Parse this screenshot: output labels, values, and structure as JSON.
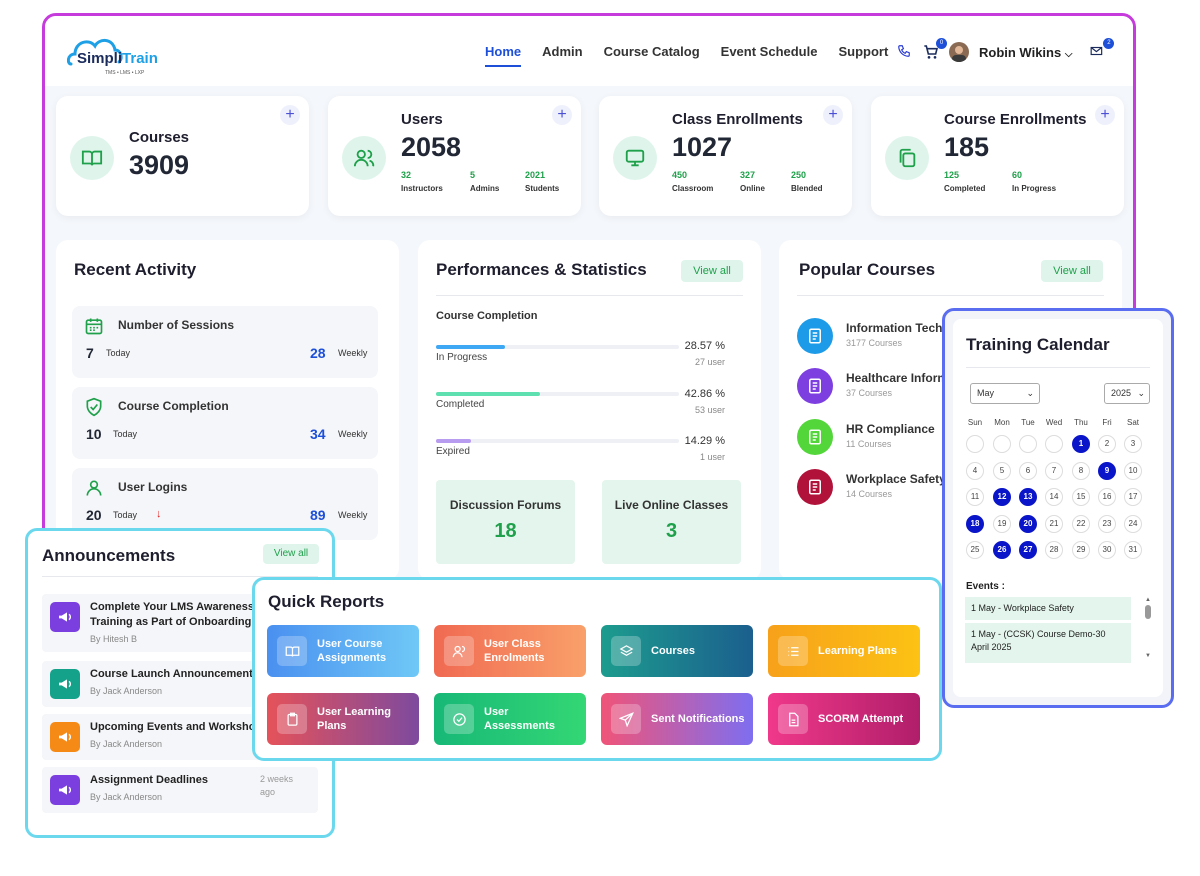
{
  "app": {
    "brand_a": "Simpli",
    "brand_b": "Train",
    "tagline": "TMS • LMS • LXP"
  },
  "nav": {
    "items": [
      "Home",
      "Admin",
      "Course Catalog",
      "Event Schedule",
      "Support"
    ],
    "active": "Home"
  },
  "header": {
    "user_name": "Robin Wikins",
    "cart_badge": "0",
    "mail_badge": "2"
  },
  "stats": [
    {
      "title": "Courses",
      "value": "3909",
      "icon": "book-open-icon",
      "subs": []
    },
    {
      "title": "Users",
      "value": "2058",
      "icon": "users-icon",
      "subs": [
        {
          "n": "32",
          "l": "Instructors"
        },
        {
          "n": "5",
          "l": "Admins"
        },
        {
          "n": "2021",
          "l": "Students"
        }
      ]
    },
    {
      "title": "Class Enrollments",
      "value": "1027",
      "icon": "monitor-icon",
      "subs": [
        {
          "n": "450",
          "l": "Classroom"
        },
        {
          "n": "327",
          "l": "Online"
        },
        {
          "n": "250",
          "l": "Blended"
        }
      ]
    },
    {
      "title": "Course Enrollments",
      "value": "185",
      "icon": "copy-icon",
      "subs": [
        {
          "n": "125",
          "l": "Completed"
        },
        {
          "n": "60",
          "l": "In Progress"
        }
      ]
    }
  ],
  "recent_activity": {
    "title": "Recent Activity",
    "items": [
      {
        "title": "Number of Sessions",
        "today": "7",
        "today_label": "Today",
        "weekly": "28",
        "weekly_label": "Weekly",
        "icon": "calendar-icon"
      },
      {
        "title": "Course Completion",
        "today": "10",
        "today_label": "Today",
        "weekly": "34",
        "weekly_label": "Weekly",
        "icon": "shield-check-icon"
      },
      {
        "title": "User Logins",
        "today": "20",
        "today_label": "Today",
        "weekly": "89",
        "weekly_label": "Weekly",
        "icon": "user-icon"
      }
    ]
  },
  "performance": {
    "title": "Performances & Statistics",
    "view_all": "View all",
    "subtitle": "Course Completion",
    "bars": [
      {
        "label": "In Progress",
        "pct": "28.57 %",
        "users": "27 user",
        "value": 28.57,
        "color": "#3fa8f4"
      },
      {
        "label": "Completed",
        "pct": "42.86 %",
        "users": "53 user",
        "value": 42.86,
        "color": "#5fe0b0"
      },
      {
        "label": "Expired",
        "pct": "14.29 %",
        "users": "1 user",
        "value": 14.29,
        "color": "#b79cf0"
      }
    ],
    "tiles": [
      {
        "title": "Discussion Forums",
        "value": "18"
      },
      {
        "title": "Live Online Classes",
        "value": "3"
      }
    ]
  },
  "popular": {
    "title": "Popular Courses",
    "view_all": "View all",
    "items": [
      {
        "name": "Information Techn",
        "count": "3177 Courses",
        "color": "#1e9be8"
      },
      {
        "name": "Healthcare Inform",
        "count": "37 Courses",
        "color": "#7d3fe0"
      },
      {
        "name": "HR Compliance",
        "count": "11 Courses",
        "color": "#52d63a"
      },
      {
        "name": "Workplace Safety",
        "count": "14 Courses",
        "color": "#b0123a"
      }
    ]
  },
  "calendar": {
    "title": "Training Calendar",
    "month": "May",
    "year": "2025",
    "days": [
      "Sun",
      "Mon",
      "Tue",
      "Wed",
      "Thu",
      "Fri",
      "Sat"
    ],
    "highlighted": [
      1,
      9,
      12,
      13,
      18,
      20,
      26,
      27
    ],
    "events_label": "Events :",
    "events": [
      "1 May - Workplace Safety",
      "1 May - (CCSK) Course Demo-30 April 2025"
    ]
  },
  "announcements": {
    "title": "Announcements",
    "view_all": "View all",
    "items": [
      {
        "title": "Complete Your LMS Awareness Training as Part of Onboarding",
        "by": "By Hitesh B",
        "time": "",
        "color": "#7b3fe0"
      },
      {
        "title": "Course Launch Announcements",
        "by": "By Jack Anderson",
        "time": "",
        "color": "#14a28a"
      },
      {
        "title": "Upcoming Events and Workshops",
        "by": "By Jack Anderson",
        "time": "",
        "color": "#f58a16"
      },
      {
        "title": "Assignment Deadlines",
        "by": "By Jack Anderson",
        "time": "2 weeks ago",
        "color": "#7b3fe0"
      }
    ]
  },
  "quick_reports": {
    "title": "Quick Reports",
    "items": [
      {
        "label": "User Course Assignments",
        "icon": "book-icon",
        "from": "#4a90f0",
        "to": "#6fc8f6"
      },
      {
        "label": "User Class Enrolments",
        "icon": "users-icon",
        "from": "#f06a52",
        "to": "#f9a06a"
      },
      {
        "label": "Courses",
        "icon": "layers-icon",
        "from": "#1d9c8e",
        "to": "#1b5f8e"
      },
      {
        "label": "Learning Plans",
        "icon": "list-icon",
        "from": "#f7a11a",
        "to": "#fcc214"
      },
      {
        "label": "User Learning Plans",
        "icon": "clipboard-icon",
        "from": "#e5525a",
        "to": "#7e4a9e"
      },
      {
        "label": "User Assessments",
        "icon": "check-circle-icon",
        "from": "#17b877",
        "to": "#34d774"
      },
      {
        "label": "Sent Notifications",
        "icon": "send-icon",
        "from": "#f05478",
        "to": "#7e6ef0"
      },
      {
        "label": "SCORM Attempt",
        "icon": "file-icon",
        "from": "#f0388a",
        "to": "#b01e6a"
      }
    ]
  }
}
